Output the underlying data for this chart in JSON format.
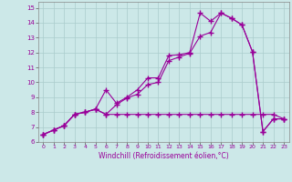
{
  "xlabel": "Windchill (Refroidissement éolien,°C)",
  "background_color": "#cce8e8",
  "grid_color": "#aacccc",
  "line_color": "#990099",
  "xlim": [
    -0.5,
    23.5
  ],
  "ylim": [
    6,
    15.4
  ],
  "xticks": [
    0,
    1,
    2,
    3,
    4,
    5,
    6,
    7,
    8,
    9,
    10,
    11,
    12,
    13,
    14,
    15,
    16,
    17,
    18,
    19,
    20,
    21,
    22,
    23
  ],
  "yticks": [
    6,
    7,
    8,
    9,
    10,
    11,
    12,
    13,
    14,
    15
  ],
  "series1_x": [
    0,
    1,
    2,
    3,
    4,
    5,
    6,
    7,
    8,
    9,
    10,
    11,
    12,
    13,
    14,
    15,
    16,
    17,
    18,
    19,
    20,
    21,
    22,
    23
  ],
  "series1_y": [
    6.5,
    6.8,
    7.1,
    7.85,
    8.0,
    8.2,
    9.5,
    8.6,
    9.0,
    9.5,
    10.3,
    10.3,
    11.8,
    11.85,
    12.0,
    14.65,
    14.1,
    14.65,
    14.3,
    13.85,
    12.05,
    6.7,
    7.55,
    7.55
  ],
  "series2_x": [
    0,
    1,
    2,
    3,
    4,
    5,
    6,
    7,
    8,
    9,
    10,
    11,
    12,
    13,
    14,
    15,
    16,
    17,
    18,
    19,
    20,
    21,
    22,
    23
  ],
  "series2_y": [
    6.5,
    6.8,
    7.1,
    7.85,
    8.0,
    8.2,
    7.85,
    8.5,
    8.95,
    9.2,
    9.85,
    10.0,
    11.45,
    11.7,
    11.95,
    13.1,
    13.35,
    14.65,
    14.3,
    13.85,
    12.05,
    6.7,
    7.55,
    7.55
  ],
  "series3_x": [
    0,
    1,
    2,
    3,
    4,
    5,
    6,
    7,
    8,
    9,
    10,
    11,
    12,
    13,
    14,
    15,
    16,
    17,
    18,
    19,
    20,
    21,
    22,
    23
  ],
  "series3_y": [
    6.5,
    6.8,
    7.1,
    7.85,
    8.0,
    8.2,
    7.85,
    7.85,
    7.85,
    7.85,
    7.85,
    7.85,
    7.85,
    7.85,
    7.85,
    7.85,
    7.85,
    7.85,
    7.85,
    7.85,
    7.85,
    7.85,
    7.85,
    7.55
  ]
}
